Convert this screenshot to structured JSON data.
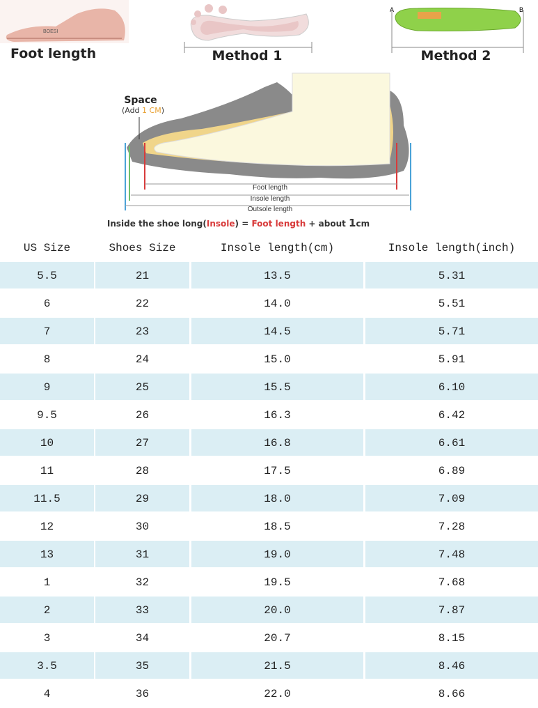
{
  "header": {
    "foot_length": "Foot length",
    "method_1": "Method 1",
    "method_2": "Method 2",
    "point_a": "A",
    "point_b": "B"
  },
  "diagram": {
    "space": "Space",
    "add_parts": [
      "(Add ",
      "1 CM",
      ")"
    ],
    "foot_length": "Foot length",
    "insole_length": "Insole length",
    "outsole_length": "Outsole length",
    "caption_parts": [
      "Inside the shoe long(",
      "Insole",
      ") = ",
      "Foot length",
      " + about ",
      "1",
      "cm"
    ]
  },
  "table": {
    "columns": [
      "US Size",
      "Shoes Size",
      "Insole length(cm)",
      "Insole length(inch)"
    ],
    "rows": [
      [
        "5.5",
        "21",
        "13.5",
        "5.31"
      ],
      [
        "6",
        "22",
        "14.0",
        "5.51"
      ],
      [
        "7",
        "23",
        "14.5",
        "5.71"
      ],
      [
        "8",
        "24",
        "15.0",
        "5.91"
      ],
      [
        "9",
        "25",
        "15.5",
        "6.10"
      ],
      [
        "9.5",
        "26",
        "16.3",
        "6.42"
      ],
      [
        "10",
        "27",
        "16.8",
        "6.61"
      ],
      [
        "11",
        "28",
        "17.5",
        "6.89"
      ],
      [
        "11.5",
        "29",
        "18.0",
        "7.09"
      ],
      [
        "12",
        "30",
        "18.5",
        "7.28"
      ],
      [
        "13",
        "31",
        "19.0",
        "7.48"
      ],
      [
        "1",
        "32",
        "19.5",
        "7.68"
      ],
      [
        "2",
        "33",
        "20.0",
        "7.87"
      ],
      [
        "3",
        "34",
        "20.7",
        "8.15"
      ],
      [
        "3.5",
        "35",
        "21.5",
        "8.46"
      ],
      [
        "4",
        "36",
        "22.0",
        "8.66"
      ]
    ]
  }
}
